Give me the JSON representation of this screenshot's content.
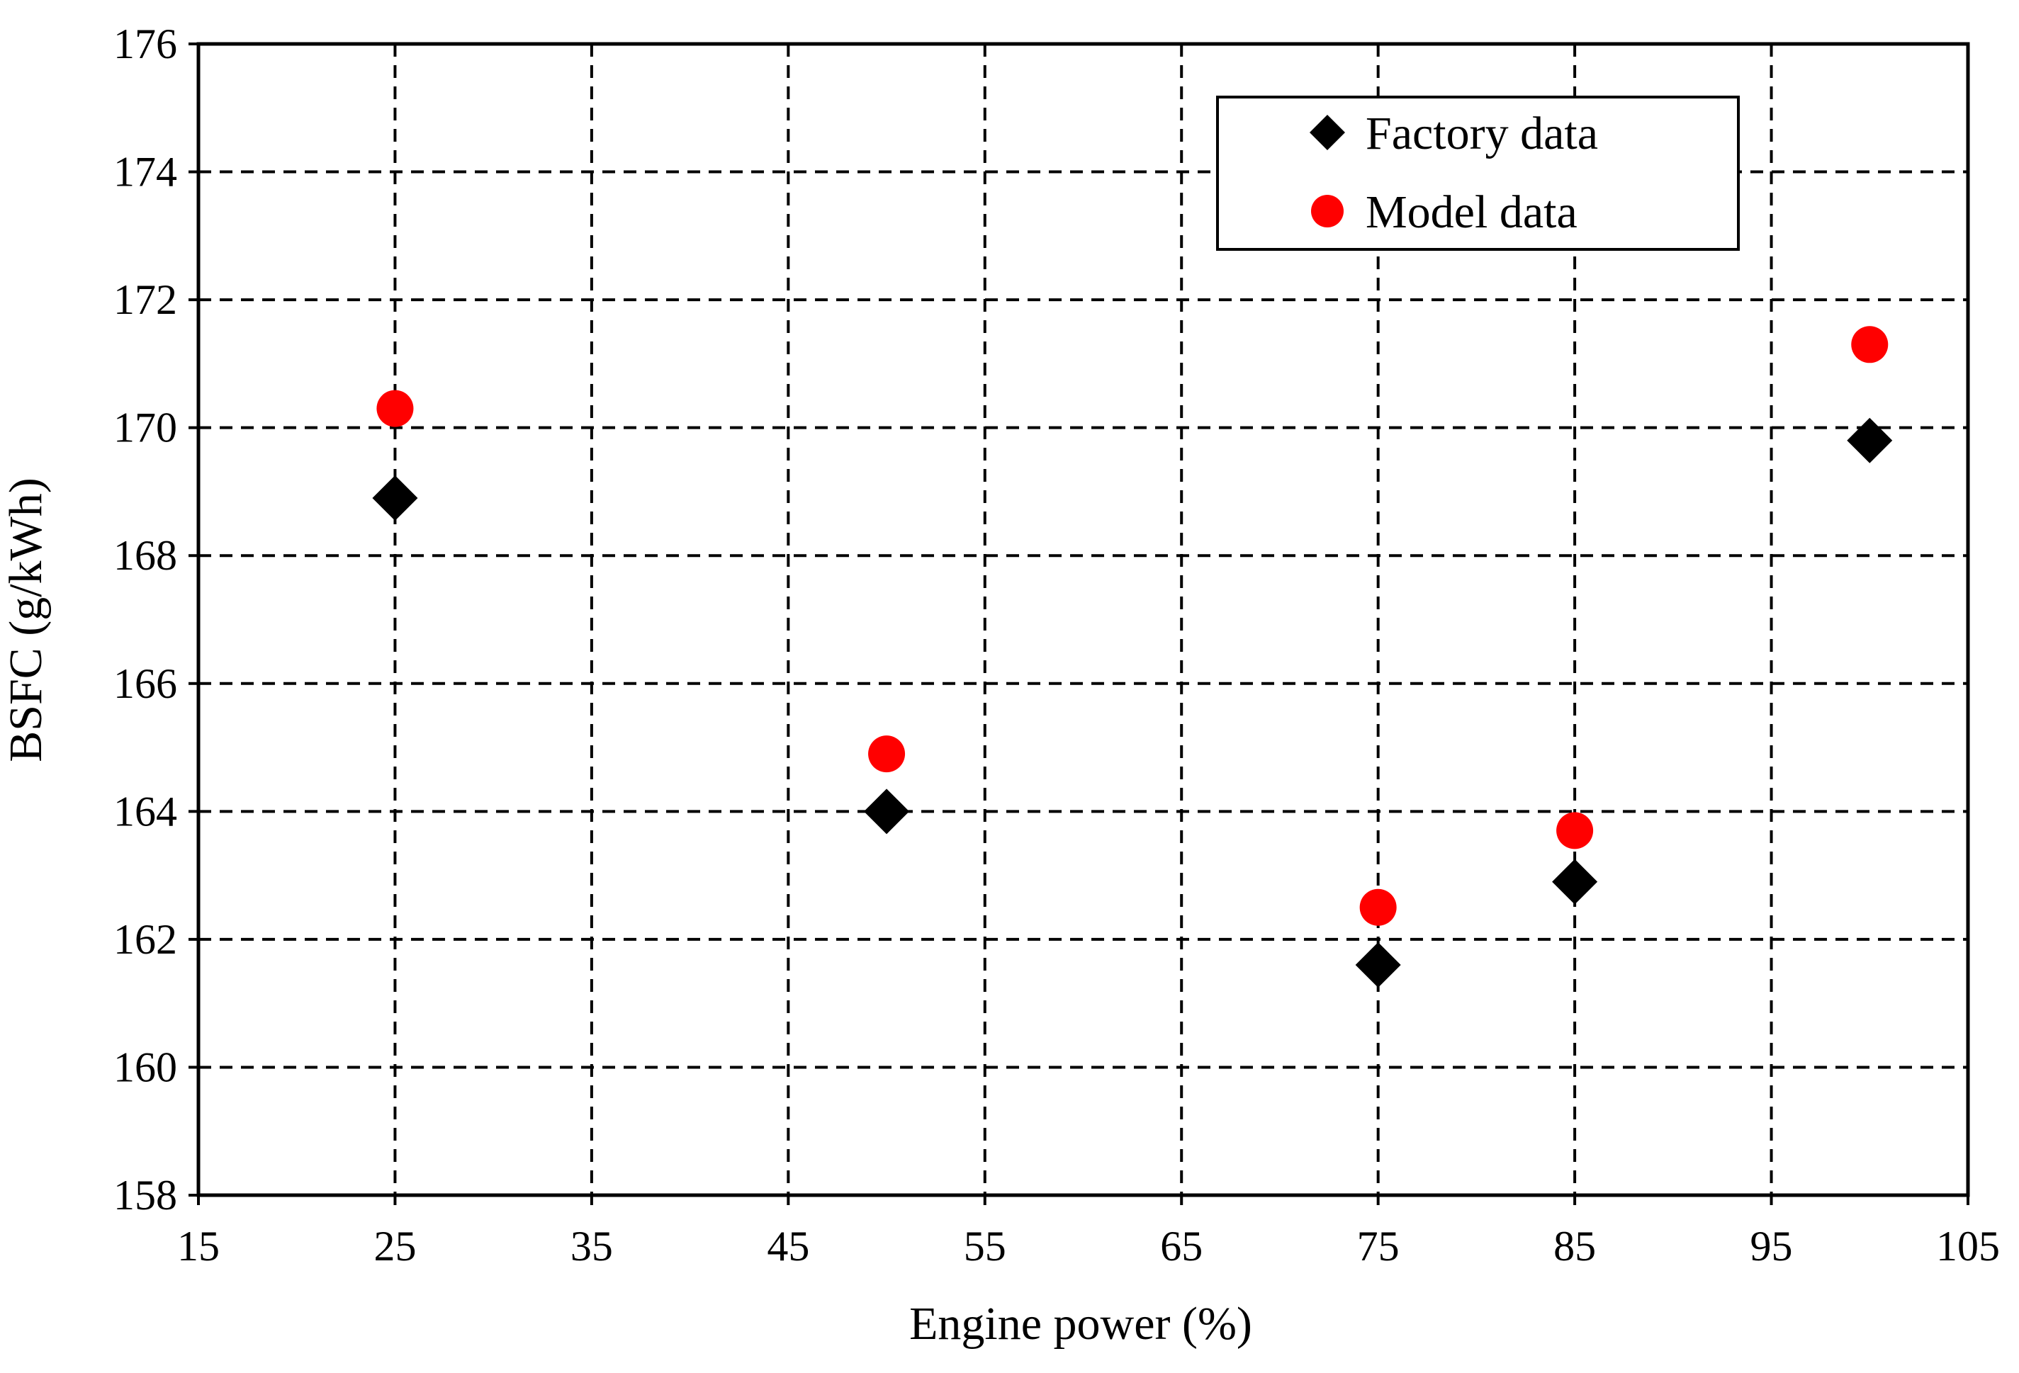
{
  "chart_data": {
    "type": "scatter",
    "title": "",
    "xlabel": "Engine power (%)",
    "ylabel": "BSFC (g/kWh)",
    "xlim": [
      15,
      105
    ],
    "ylim": [
      158,
      176
    ],
    "xticks": [
      15,
      25,
      35,
      45,
      55,
      65,
      75,
      85,
      95,
      105
    ],
    "yticks": [
      158,
      160,
      162,
      164,
      166,
      168,
      170,
      172,
      174,
      176
    ],
    "grid": true,
    "legend_position": "top-right",
    "series": [
      {
        "name": "Factory data",
        "marker": "diamond",
        "color": "#000000",
        "x": [
          25,
          50,
          75,
          85,
          100
        ],
        "y": [
          168.9,
          164.0,
          161.6,
          162.9,
          169.8
        ]
      },
      {
        "name": "Model data",
        "marker": "circle",
        "color": "#ff0000",
        "x": [
          25,
          50,
          75,
          85,
          100
        ],
        "y": [
          170.3,
          164.9,
          162.5,
          163.7,
          171.3
        ]
      }
    ]
  }
}
